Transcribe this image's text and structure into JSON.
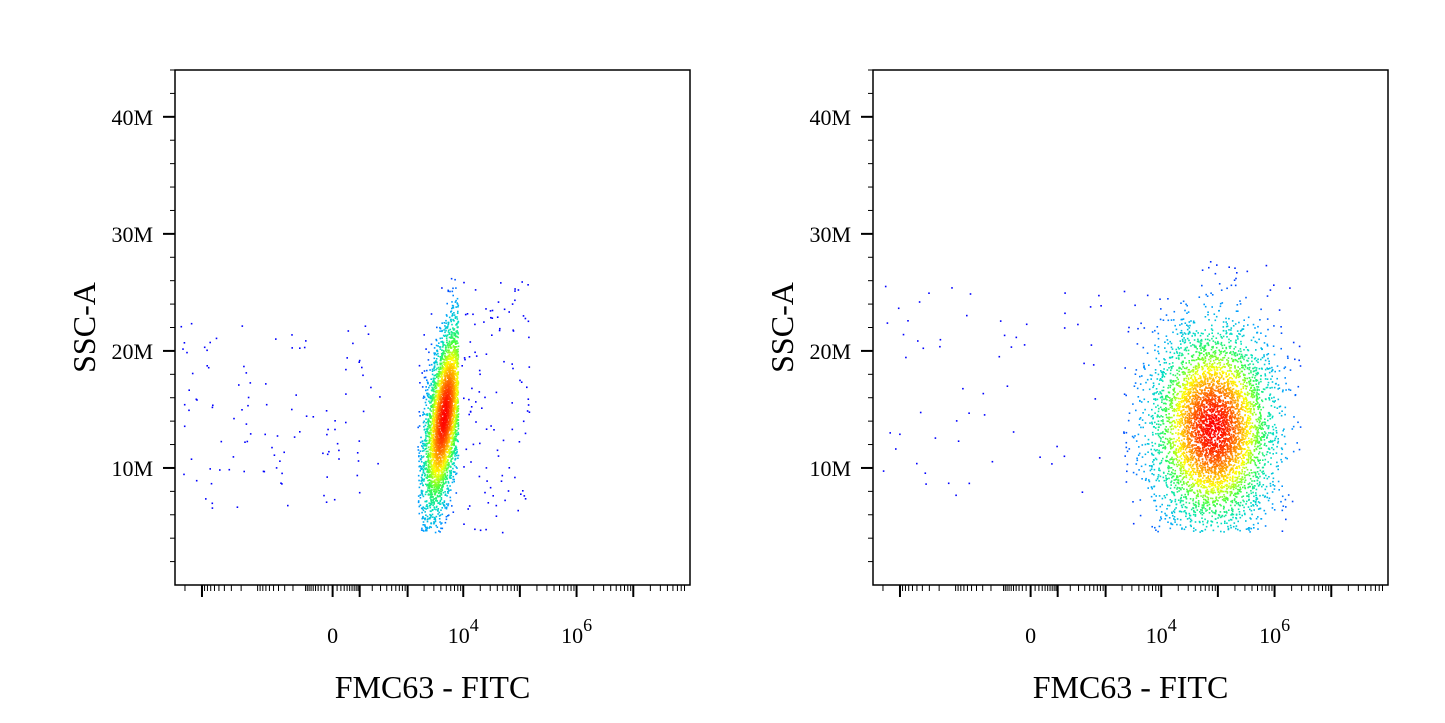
{
  "chart_data": [
    {
      "type": "scatter",
      "style": "density-colored dot plot",
      "xlabel": "FMC63 - FITC",
      "ylabel": "SSC-A",
      "x_scale": "biexponential",
      "y_scale": "linear",
      "x_ticks": [
        {
          "value": 0,
          "base": "0",
          "exp": ""
        },
        {
          "value": 10000,
          "base": "10",
          "exp": "4"
        },
        {
          "value": 1000000,
          "base": "10",
          "exp": "6"
        }
      ],
      "y_ticks": [
        {
          "value": 10000000,
          "label": "10M"
        },
        {
          "value": 20000000,
          "label": "20M"
        },
        {
          "value": 30000000,
          "label": "30M"
        },
        {
          "value": 40000000,
          "label": "40M"
        }
      ],
      "ylim": [
        0,
        44000000
      ],
      "clusters": [
        {
          "x_center": 4500,
          "y_center": 14500000,
          "x_spread_decades": 0.16,
          "y_spread": 4200000,
          "tilt": 0.22,
          "count": 4200,
          "x_range": [
            1500,
            8000
          ],
          "y_range": [
            4500000,
            28000000
          ]
        },
        {
          "x_center": -2000,
          "y_center": 14000000,
          "x_spread_decades": 0,
          "y_spread": 4000000,
          "count": 110,
          "x_range": [
            -25000,
            300
          ],
          "y_range": [
            6500000,
            23000000
          ],
          "note_type": "scattered low events"
        },
        {
          "x_center": 40000,
          "y_center": 15000000,
          "x_spread_decades": 0.4,
          "y_spread": 5000000,
          "count": 110,
          "x_range": [
            9000,
            150000
          ],
          "y_range": [
            4500000,
            26000000
          ],
          "note_type": "scattered high events"
        }
      ]
    },
    {
      "type": "scatter",
      "style": "density-colored dot plot",
      "xlabel": "FMC63 - FITC",
      "ylabel": "SSC-A",
      "x_scale": "biexponential",
      "y_scale": "linear",
      "x_ticks": [
        {
          "value": 0,
          "base": "0",
          "exp": ""
        },
        {
          "value": 10000,
          "base": "10",
          "exp": "4"
        },
        {
          "value": 1000000,
          "base": "10",
          "exp": "6"
        }
      ],
      "y_ticks": [
        {
          "value": 10000000,
          "label": "10M"
        },
        {
          "value": 20000000,
          "label": "20M"
        },
        {
          "value": 30000000,
          "label": "30M"
        },
        {
          "value": 40000000,
          "label": "40M"
        }
      ],
      "ylim": [
        0,
        44000000
      ],
      "clusters": [
        {
          "x_center": 80000,
          "y_center": 13500000,
          "x_spread_decades": 0.55,
          "y_spread": 4300000,
          "tilt": 0,
          "count": 5200,
          "x_range": [
            2000,
            3000000
          ],
          "y_range": [
            4500000,
            28000000
          ]
        },
        {
          "x_center": -3000,
          "y_center": 13000000,
          "x_spread_decades": 0,
          "y_spread": 3500000,
          "count": 60,
          "x_range": [
            -25000,
            800
          ],
          "y_range": [
            6000000,
            26000000
          ],
          "note_type": "scattered low events"
        }
      ]
    }
  ],
  "colors": {
    "density_scale": [
      "#0000ff",
      "#00a0ff",
      "#00e0c0",
      "#40ff40",
      "#ffff00",
      "#ff8000",
      "#ff0000"
    ],
    "axis": "#000000",
    "background": "#ffffff"
  }
}
